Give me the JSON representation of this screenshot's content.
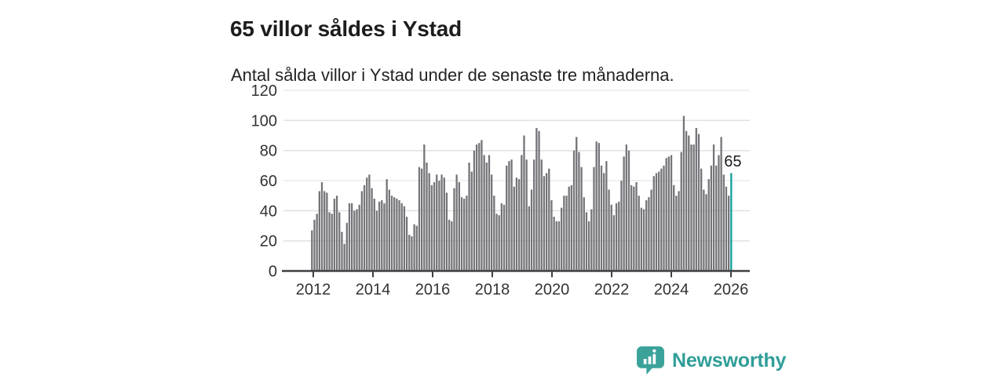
{
  "header": {
    "title": "65 villor såldes i Ystad",
    "subtitle": "Antal sålda villor i Ystad under de senaste tre månaderna."
  },
  "chart_data": {
    "type": "bar",
    "title": "65 villor såldes i Ystad",
    "subtitle": "Antal sålda villor i Ystad under de senaste tre månaderna.",
    "x_start": "2012-01",
    "x_interval": "monthly",
    "x_end": "2026-01",
    "values": [
      27,
      34,
      38,
      53,
      59,
      53,
      52,
      39,
      38,
      48,
      50,
      39,
      26,
      18,
      32,
      45,
      45,
      40,
      41,
      44,
      53,
      57,
      62,
      64,
      55,
      48,
      40,
      46,
      47,
      45,
      61,
      54,
      50,
      49,
      48,
      47,
      45,
      43,
      36,
      24,
      23,
      31,
      30,
      69,
      68,
      84,
      72,
      65,
      57,
      59,
      64,
      60,
      64,
      62,
      52,
      34,
      33,
      55,
      64,
      59,
      49,
      48,
      50,
      72,
      66,
      80,
      84,
      85,
      87,
      77,
      72,
      77,
      64,
      50,
      38,
      37,
      45,
      44,
      70,
      73,
      74,
      56,
      62,
      61,
      77,
      90,
      74,
      43,
      54,
      74,
      95,
      93,
      74,
      63,
      65,
      68,
      47,
      36,
      33,
      33,
      42,
      50,
      50,
      56,
      57,
      80,
      89,
      79,
      69,
      49,
      39,
      33,
      41,
      69,
      86,
      85,
      70,
      65,
      73,
      54,
      44,
      37,
      45,
      46,
      60,
      76,
      84,
      80,
      57,
      56,
      59,
      50,
      42,
      41,
      47,
      49,
      54,
      63,
      65,
      66,
      68,
      70,
      75,
      76,
      77,
      57,
      50,
      53,
      79,
      103,
      93,
      90,
      84,
      84,
      95,
      91,
      68,
      54,
      51,
      61,
      70,
      84,
      70,
      77,
      89,
      64,
      56,
      50,
      65
    ],
    "highlight": {
      "index": 168,
      "value": 65,
      "label": "65"
    },
    "y_ticks": [
      0,
      20,
      40,
      60,
      80,
      100,
      120
    ],
    "x_ticks": [
      2012,
      2014,
      2016,
      2018,
      2020,
      2022,
      2024,
      2026
    ],
    "ylim": [
      0,
      120
    ],
    "grid": true,
    "legend": "none"
  },
  "footer": {
    "brand": "Newsworthy"
  },
  "colors": {
    "bar_gray": "#757479",
    "accent_teal": "#12a19a",
    "brand_teal": "#3ba29a",
    "text_dark": "#1c1c1c",
    "axis_text": "#333336",
    "axis_line": "#3f3f44",
    "gridline": "#e1e1e4"
  }
}
